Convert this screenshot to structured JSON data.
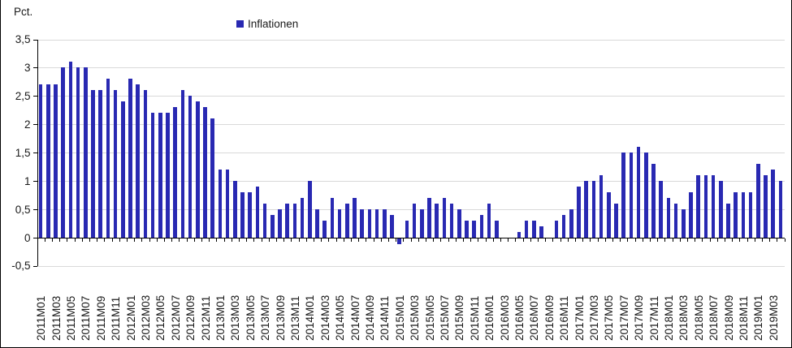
{
  "legend": {
    "label": "Inflationen"
  },
  "colors": {
    "bar": "#2929b2",
    "gridline": "#d9d9d9",
    "axis": "#000000",
    "text": "#1a1a1a",
    "border": "#000000",
    "background": "#ffffff"
  },
  "chart_data": {
    "type": "bar",
    "title": "",
    "ylabel": "Pct.",
    "xlabel": "",
    "legend": [
      "Inflationen"
    ],
    "legend_position": "top",
    "grid": true,
    "ylim": [
      -0.5,
      3.5
    ],
    "ytick_step": 0.5,
    "ytick_labels": [
      "3,5",
      "3",
      "2,5",
      "2",
      "1,5",
      "1",
      "0,5",
      "0",
      "-0,5"
    ],
    "x_label_every_n": 2,
    "categories": [
      "2011M01",
      "2011M02",
      "2011M03",
      "2011M04",
      "2011M05",
      "2011M06",
      "2011M07",
      "2011M08",
      "2011M09",
      "2011M10",
      "2011M11",
      "2011M12",
      "2012M01",
      "2012M02",
      "2012M03",
      "2012M04",
      "2012M05",
      "2012M06",
      "2012M07",
      "2012M08",
      "2012M09",
      "2012M10",
      "2012M11",
      "2012M12",
      "2013M01",
      "2013M02",
      "2013M03",
      "2013M04",
      "2013M05",
      "2013M06",
      "2013M07",
      "2013M08",
      "2013M09",
      "2013M10",
      "2013M11",
      "2013M12",
      "2014M01",
      "2014M02",
      "2014M03",
      "2014M04",
      "2014M05",
      "2014M06",
      "2014M07",
      "2014M08",
      "2014M09",
      "2014M10",
      "2014M11",
      "2014M12",
      "2015M01",
      "2015M02",
      "2015M03",
      "2015M04",
      "2015M05",
      "2015M06",
      "2015M07",
      "2015M08",
      "2015M09",
      "2015M10",
      "2015M11",
      "2015M12",
      "2016M01",
      "2016M02",
      "2016M03",
      "2016M04",
      "2016M05",
      "2016M06",
      "2016M07",
      "2016M08",
      "2016M09",
      "2016M10",
      "2016M11",
      "2016M12",
      "2017M01",
      "2017M02",
      "2017M03",
      "2017M04",
      "2017M05",
      "2017M06",
      "2017M07",
      "2017M08",
      "2017M09",
      "2017M10",
      "2017M11",
      "2017M12",
      "2018M01",
      "2018M02",
      "2018M03",
      "2018M04",
      "2018M05",
      "2018M06",
      "2018M07",
      "2018M08",
      "2018M09",
      "2018M10",
      "2018M11",
      "2018M12",
      "2019M01",
      "2019M02",
      "2019M03",
      "2019M04"
    ],
    "values": [
      2.7,
      2.7,
      2.7,
      3.0,
      3.1,
      3.0,
      3.0,
      2.6,
      2.6,
      2.8,
      2.6,
      2.4,
      2.8,
      2.7,
      2.6,
      2.2,
      2.2,
      2.2,
      2.3,
      2.6,
      2.5,
      2.4,
      2.3,
      2.1,
      1.2,
      1.2,
      1.0,
      0.8,
      0.8,
      0.9,
      0.6,
      0.4,
      0.5,
      0.6,
      0.6,
      0.7,
      1.0,
      0.5,
      0.3,
      0.7,
      0.5,
      0.6,
      0.7,
      0.5,
      0.5,
      0.5,
      0.5,
      0.4,
      -0.1,
      0.3,
      0.6,
      0.5,
      0.7,
      0.6,
      0.7,
      0.6,
      0.5,
      0.3,
      0.3,
      0.4,
      0.6,
      0.3,
      0.0,
      0.0,
      0.1,
      0.3,
      0.3,
      0.2,
      0.0,
      0.3,
      0.4,
      0.5,
      0.9,
      1.0,
      1.0,
      1.1,
      0.8,
      0.6,
      1.5,
      1.5,
      1.6,
      1.5,
      1.3,
      1.0,
      0.7,
      0.6,
      0.5,
      0.8,
      1.1,
      1.1,
      1.1,
      1.0,
      0.6,
      0.8,
      0.8,
      0.8,
      1.3,
      1.1,
      1.2,
      1.0
    ]
  }
}
